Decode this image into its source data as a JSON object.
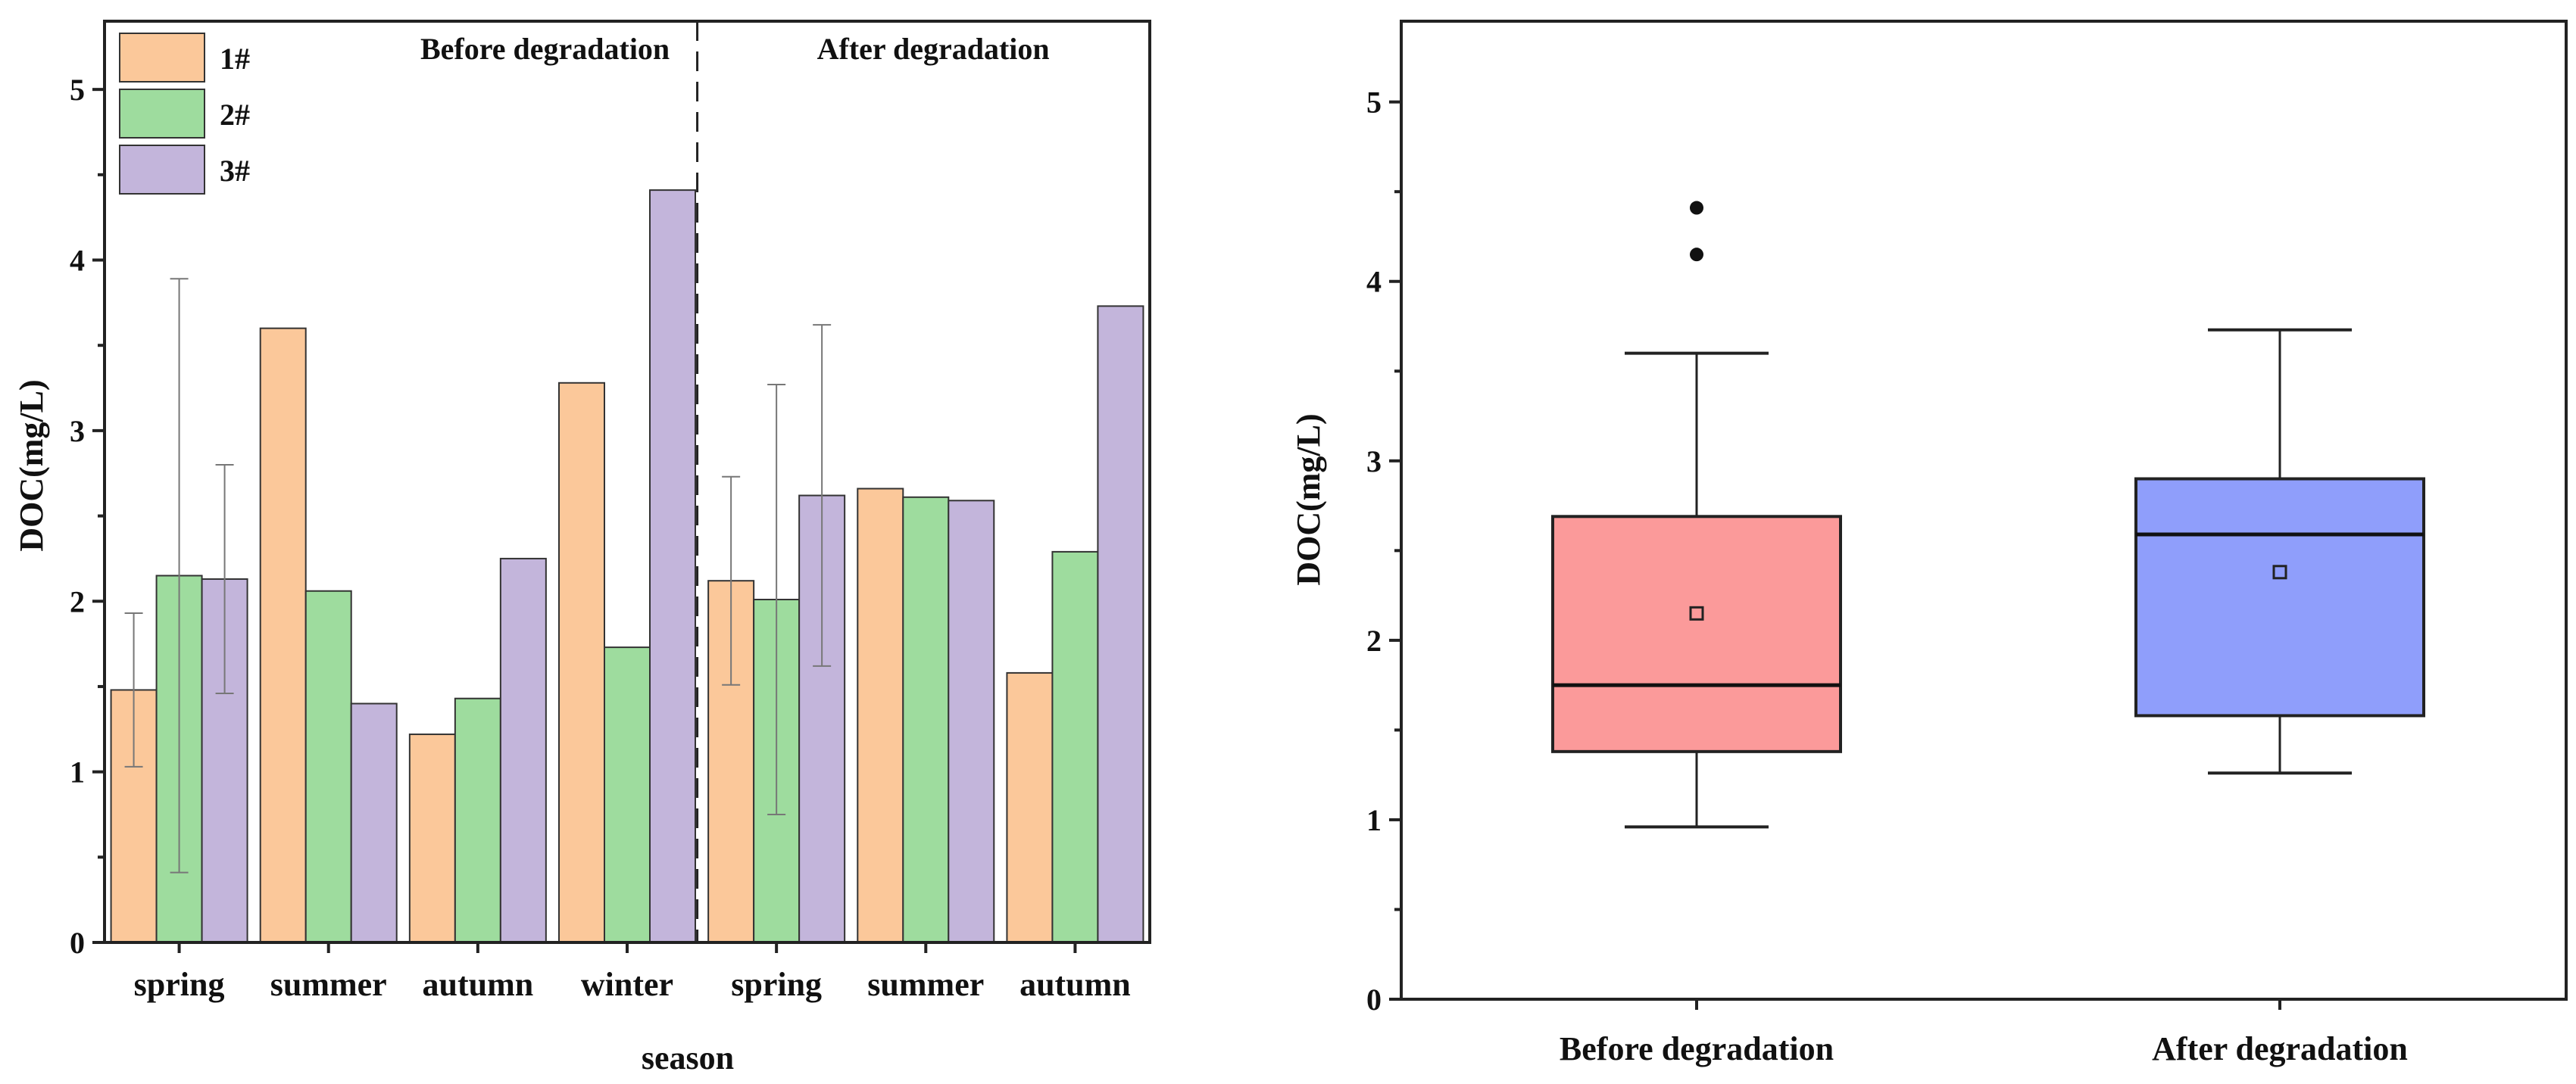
{
  "chart_data": [
    {
      "type": "bar",
      "ylabel": "DOC(mg/L)",
      "xlabel": "season",
      "ylim": [
        0,
        5.4
      ],
      "yticks": [
        "0",
        "1",
        "2",
        "3",
        "4",
        "5"
      ],
      "categories": [
        "spring",
        "summer",
        "autumn",
        "winter",
        "spring",
        "summer",
        "autumn"
      ],
      "groups": [
        {
          "label": "Before degradation",
          "categories": [
            0,
            1,
            2,
            3
          ]
        },
        {
          "label": "After degradation",
          "categories": [
            4,
            5,
            6
          ]
        }
      ],
      "series": [
        {
          "name": "1#",
          "color": "#fbc89a",
          "values": [
            1.48,
            3.6,
            1.22,
            3.28,
            2.12,
            2.66,
            1.58
          ],
          "errors": [
            0.45,
            null,
            null,
            null,
            0.61,
            null,
            null
          ]
        },
        {
          "name": "2#",
          "color": "#9edc9e",
          "values": [
            2.15,
            2.06,
            1.43,
            1.73,
            2.01,
            2.61,
            2.29
          ],
          "errors": [
            1.74,
            null,
            null,
            null,
            1.26,
            null,
            null
          ]
        },
        {
          "name": "3#",
          "color": "#c3b5db",
          "values": [
            2.13,
            1.4,
            2.25,
            4.41,
            2.62,
            2.59,
            3.73
          ],
          "errors": [
            0.67,
            null,
            null,
            null,
            1.0,
            null,
            null
          ]
        }
      ],
      "legend": {
        "position": "top-left"
      }
    },
    {
      "type": "box",
      "ylabel": "DOC(mg/L)",
      "ylim": [
        0,
        5.45
      ],
      "yticks": [
        "0",
        "1",
        "2",
        "3",
        "4",
        "5"
      ],
      "boxes": [
        {
          "label": "Before degradation",
          "color": "#fb9a9a",
          "whisker_low": 0.96,
          "q1": 1.38,
          "median": 1.75,
          "q3": 2.69,
          "whisker_high": 3.6,
          "mean": 2.15,
          "outliers": [
            4.15,
            4.41
          ]
        },
        {
          "label": "After degradation",
          "color": "#8f9efb",
          "whisker_low": 1.26,
          "q1": 1.58,
          "median": 2.59,
          "q3": 2.9,
          "whisker_high": 3.73,
          "mean": 2.38,
          "outliers": []
        }
      ]
    }
  ]
}
